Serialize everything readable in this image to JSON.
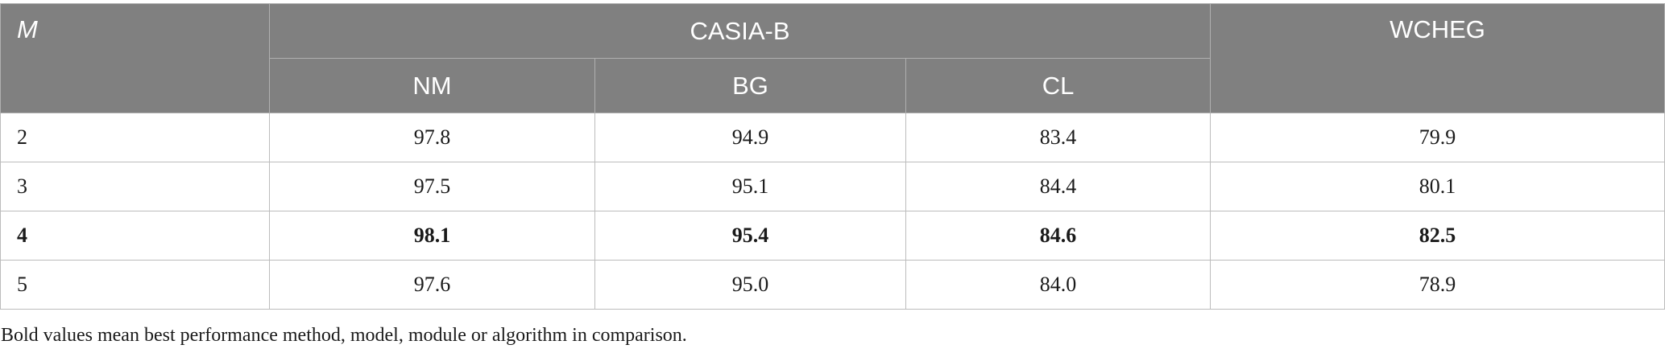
{
  "table": {
    "header": {
      "m_label": "M",
      "group_label": "CASIA-B",
      "sub_labels": [
        "NM",
        "BG",
        "CL"
      ],
      "wcheg_label": "WCHEG"
    },
    "rows": [
      {
        "m": "2",
        "nm": "97.8",
        "bg": "94.9",
        "cl": "83.4",
        "wcheg": "79.9"
      },
      {
        "m": "3",
        "nm": "97.5",
        "bg": "95.1",
        "cl": "84.4",
        "wcheg": "80.1"
      },
      {
        "m": "4",
        "nm": "98.1",
        "bg": "95.4",
        "cl": "84.6",
        "wcheg": "82.5"
      },
      {
        "m": "5",
        "nm": "97.6",
        "bg": "95.0",
        "cl": "84.0",
        "wcheg": "78.9"
      }
    ],
    "header_bg_color": "#808080",
    "best_row_m": "4"
  },
  "footnote": "Bold values mean best performance method, model, module or algorithm in comparison."
}
